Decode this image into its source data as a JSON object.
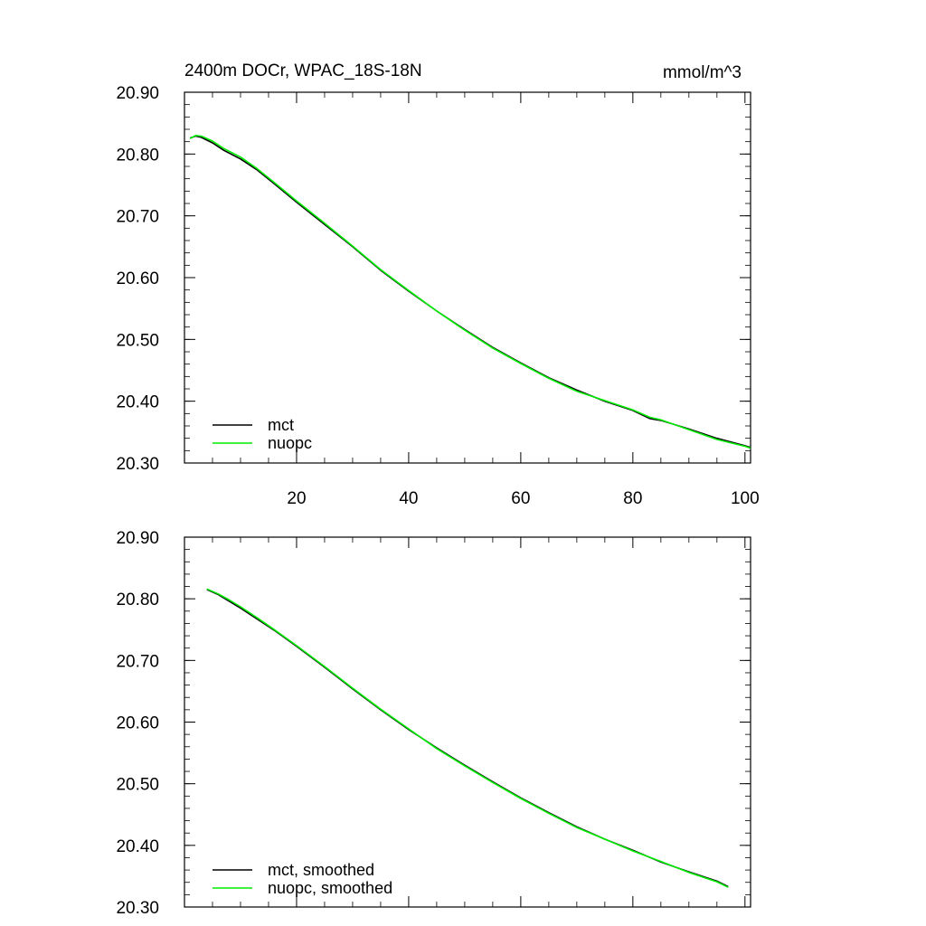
{
  "chart_data": [
    {
      "type": "line",
      "title": "2400m DOCr, WPAC_18S-18N",
      "units": "mmol/m^3",
      "xlabel": "",
      "ylabel": "",
      "xlim": [
        0,
        101
      ],
      "ylim": [
        20.3,
        20.9
      ],
      "xticks": [
        20,
        40,
        60,
        80,
        100
      ],
      "xtick_labels": [
        "20",
        "40",
        "60",
        "80",
        "100"
      ],
      "yticks": [
        20.3,
        20.4,
        20.5,
        20.6,
        20.7,
        20.8,
        20.9
      ],
      "ytick_labels": [
        "20.30",
        "20.40",
        "20.50",
        "20.60",
        "20.70",
        "20.80",
        "20.90"
      ],
      "legend_position": "bottom-left",
      "x": [
        1,
        2,
        3,
        5,
        7,
        10,
        13,
        16,
        20,
        25,
        30,
        35,
        40,
        45,
        50,
        55,
        60,
        65,
        70,
        75,
        80,
        83,
        85,
        90,
        95,
        100,
        101
      ],
      "series": [
        {
          "name": "mct",
          "color": "#000000",
          "values": [
            20.826,
            20.829,
            20.827,
            20.818,
            20.806,
            20.792,
            20.774,
            20.752,
            20.722,
            20.686,
            20.65,
            20.612,
            20.578,
            20.546,
            20.516,
            20.487,
            20.462,
            20.438,
            20.418,
            20.4,
            20.385,
            20.372,
            20.369,
            20.355,
            20.34,
            20.328,
            20.325
          ]
        },
        {
          "name": "nuopc",
          "color": "#00ee00",
          "values": [
            20.825,
            20.83,
            20.829,
            20.821,
            20.809,
            20.795,
            20.776,
            20.754,
            20.724,
            20.688,
            20.651,
            20.613,
            20.579,
            20.546,
            20.515,
            20.486,
            20.461,
            20.437,
            20.416,
            20.401,
            20.386,
            20.374,
            20.37,
            20.354,
            20.338,
            20.327,
            20.324
          ]
        }
      ]
    },
    {
      "type": "line",
      "title": "",
      "xlabel": "",
      "ylabel": "",
      "xlim": [
        0,
        101
      ],
      "ylim": [
        20.3,
        20.9
      ],
      "xticks": [
        20,
        40,
        60,
        80,
        100
      ],
      "yticks": [
        20.3,
        20.4,
        20.5,
        20.6,
        20.7,
        20.8,
        20.9
      ],
      "ytick_labels": [
        "20.30",
        "20.40",
        "20.50",
        "20.60",
        "20.70",
        "20.80",
        "20.90"
      ],
      "legend_position": "bottom-left",
      "x": [
        4,
        6,
        8,
        10,
        13,
        16,
        20,
        25,
        30,
        35,
        40,
        45,
        50,
        55,
        60,
        65,
        70,
        75,
        80,
        85,
        90,
        95,
        97
      ],
      "series": [
        {
          "name": "mct, smoothed",
          "color": "#000000",
          "values": [
            20.815,
            20.807,
            20.796,
            20.785,
            20.767,
            20.749,
            20.723,
            20.689,
            20.654,
            20.62,
            20.588,
            20.558,
            20.53,
            20.503,
            20.477,
            20.453,
            20.43,
            20.41,
            20.392,
            20.373,
            20.357,
            20.342,
            20.333
          ]
        },
        {
          "name": "nuopc, smoothed",
          "color": "#00ee00",
          "values": [
            20.816,
            20.808,
            20.798,
            20.787,
            20.769,
            20.75,
            20.724,
            20.69,
            20.655,
            20.621,
            20.589,
            20.557,
            20.529,
            20.502,
            20.476,
            20.452,
            20.429,
            20.41,
            20.391,
            20.374,
            20.356,
            20.341,
            20.332
          ]
        }
      ]
    }
  ]
}
